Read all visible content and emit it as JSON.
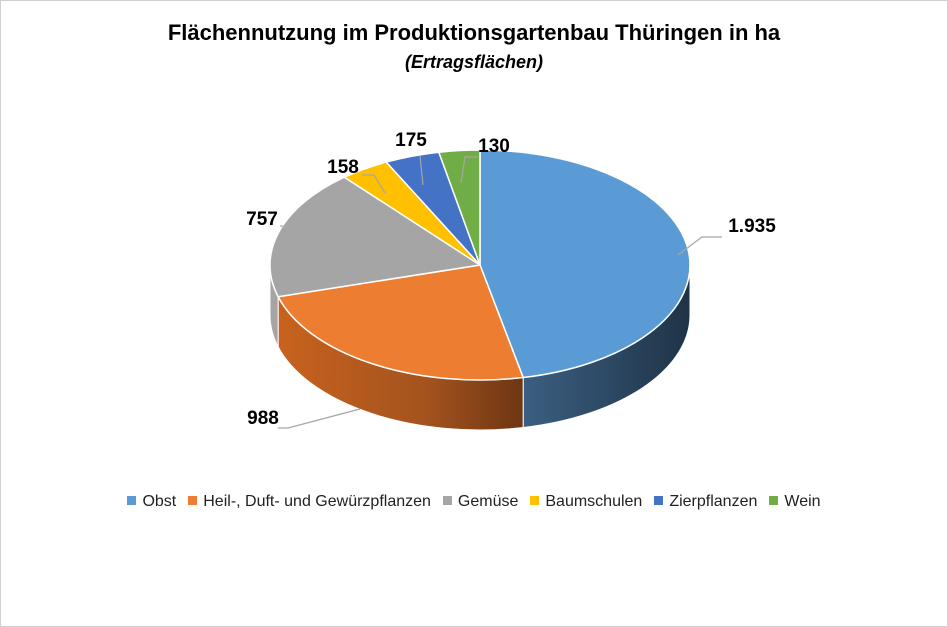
{
  "chart_data": {
    "type": "pie",
    "title": "Flächennutzung im Produktionsgartenbau Thüringen  in ha",
    "subtitle": "(Ertragsflächen)",
    "legend_position": "bottom",
    "categories": [
      "Obst",
      "Heil-, Duft- und Gewürzpflanzen",
      "Gemüse",
      "Baumschulen",
      "Zierpflanzen",
      "Wein"
    ],
    "values": [
      1935,
      988,
      757,
      158,
      175,
      130
    ],
    "value_labels": [
      "1.935",
      "988",
      "757",
      "158",
      "175",
      "130"
    ],
    "colors": [
      "#5b9bd5",
      "#ed7d31",
      "#a5a5a5",
      "#ffc000",
      "#4472c4",
      "#70ad47"
    ]
  }
}
